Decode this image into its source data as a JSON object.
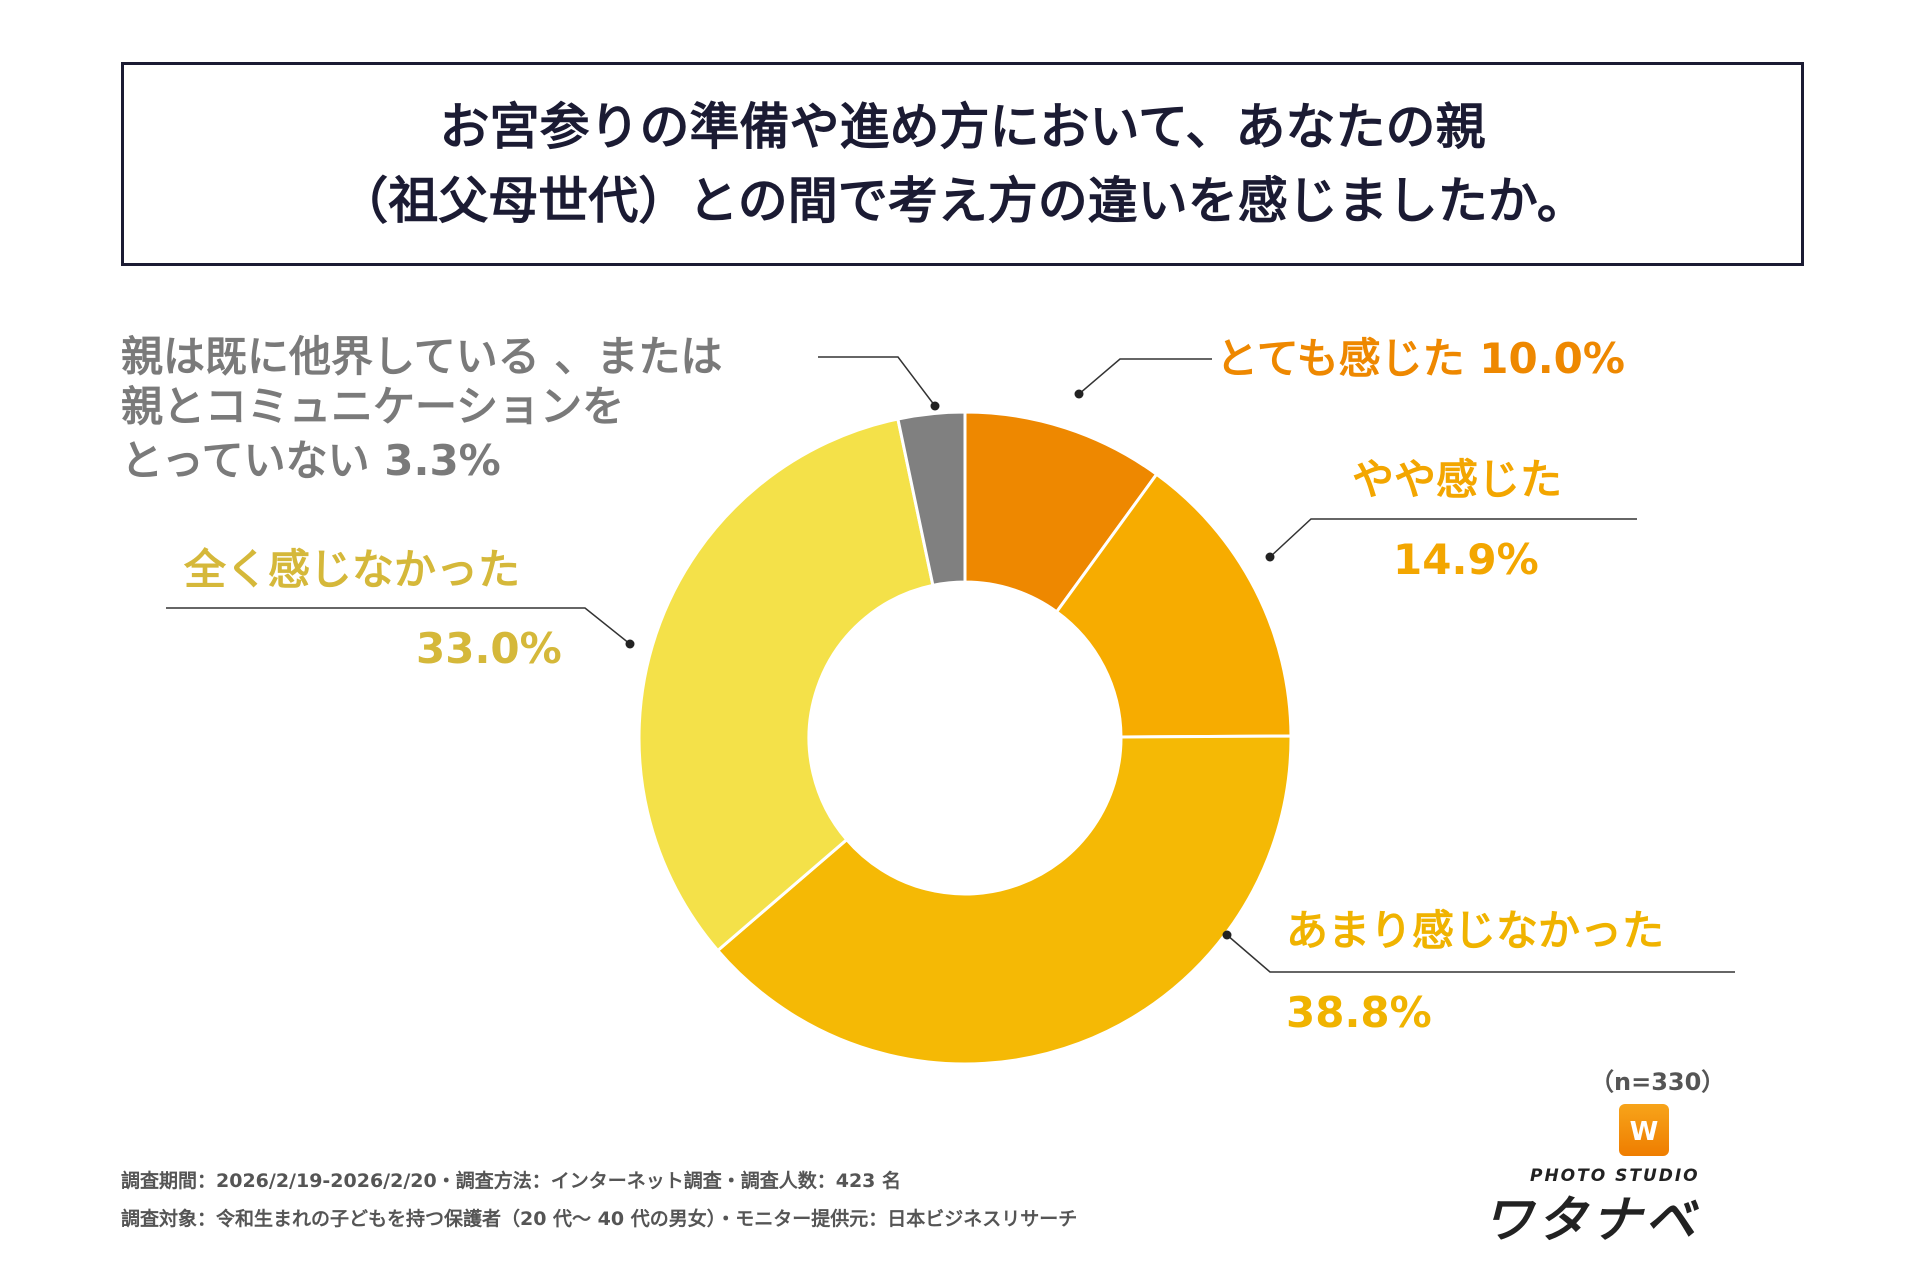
{
  "title": {
    "line1": "お宮参りの準備や進め方において、あなたの親",
    "line2": "（祖父母世代）との間で考え方の違いを感じましたか。"
  },
  "chart_data": {
    "type": "pie",
    "donut": true,
    "start": "top, clockwise",
    "slices": [
      {
        "name": "とても感じた",
        "value": 10.0,
        "label": "10.0%",
        "color": "#EE8800",
        "text_color": "#EE8800"
      },
      {
        "name": "やや感じた",
        "value": 14.9,
        "label": "14.9%",
        "color": "#F7AC00",
        "text_color": "#F3A600"
      },
      {
        "name": "あまり感じなかった",
        "value": 38.8,
        "label": "38.8%",
        "color": "#F5B905",
        "text_color": "#F0B300"
      },
      {
        "name": "全く感じなかった",
        "value": 33.0,
        "label": "33.0%",
        "color": "#F4E149",
        "text_color": "#D5B83A"
      },
      {
        "name_lines": [
          "親は既に他界している 、または",
          "親とコミュニケーションを",
          "とっていない"
        ],
        "value": 3.3,
        "label": "3.3%",
        "color": "#808080",
        "text_color": "#7A7A7A"
      }
    ]
  },
  "sample": "（n=330）",
  "footer": {
    "line1": "調査期間：2026/2/19-2026/2/20・調査方法：インターネット調査・調査人数：423 名",
    "line2": "調査対象：令和生まれの子どもを持つ保護者（20 代～ 40 代の男女）・モニター提供元：日本ビジネスリサーチ"
  },
  "logo": {
    "icon": "W",
    "sub": "PHOTO STUDIO",
    "main": "ワタナベ"
  }
}
